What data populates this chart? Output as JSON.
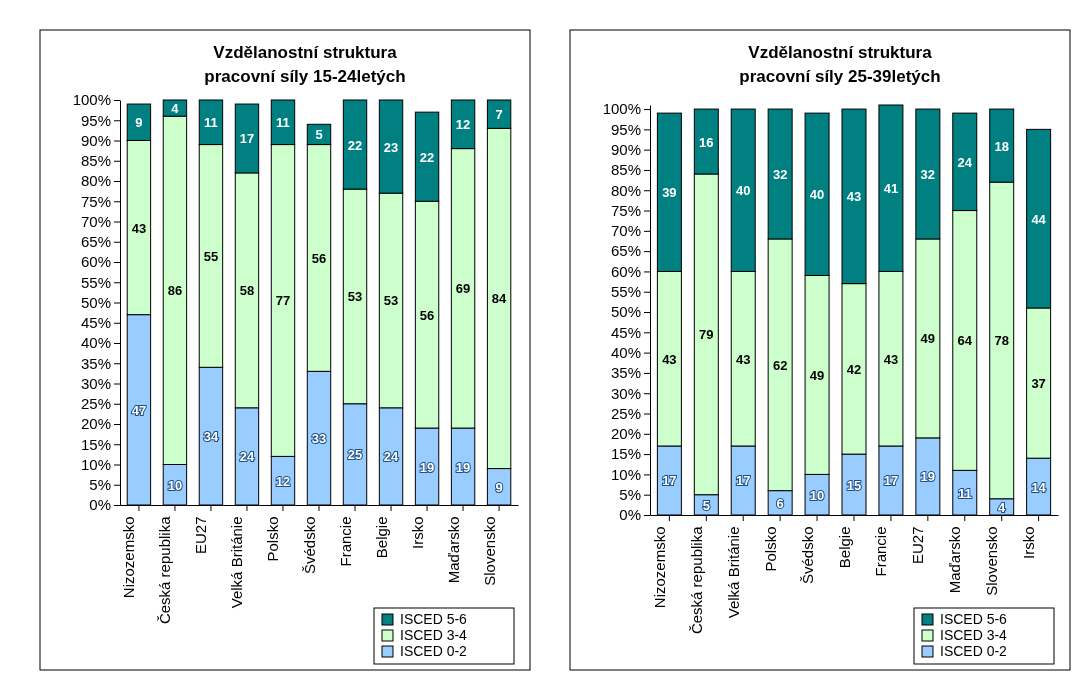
{
  "chart_data": [
    {
      "type": "bar",
      "title": "Vzdělanostní struktura\npracovní síly 15-24letých",
      "stacked": true,
      "data_labels": true,
      "legend": "bottom right",
      "grid": false,
      "categories": [
        "Nizozemsko",
        "Česká republika",
        "EU27",
        "Velká Británie",
        "Polsko",
        "Švédsko",
        "Francie",
        "Belgie",
        "Irsko",
        "Maďarsko",
        "Slovensko"
      ],
      "ylim": [
        0,
        100
      ],
      "yticks": [
        {
          "value": 0,
          "label": "0%"
        },
        {
          "value": 5,
          "label": "5%"
        },
        {
          "value": 10,
          "label": "10%"
        },
        {
          "value": 15,
          "label": "15%"
        },
        {
          "value": 20,
          "label": "20%"
        },
        {
          "value": 25,
          "label": "25%"
        },
        {
          "value": 30,
          "label": "30%"
        },
        {
          "value": 35,
          "label": "35%"
        },
        {
          "value": 40,
          "label": "40%"
        },
        {
          "value": 45,
          "label": "45%"
        },
        {
          "value": 50,
          "label": "50%"
        },
        {
          "value": 55,
          "label": "55%"
        },
        {
          "value": 60,
          "label": "60%"
        },
        {
          "value": 65,
          "label": "65%"
        },
        {
          "value": 70,
          "label": "70%"
        },
        {
          "value": 75,
          "label": "75%"
        },
        {
          "value": 80,
          "label": "80%"
        },
        {
          "value": 85,
          "label": "85%"
        },
        {
          "value": 90,
          "label": "90%"
        },
        {
          "value": 95,
          "label": "95%"
        },
        {
          "value": 100,
          "label": "100%"
        }
      ],
      "series": [
        {
          "name": "ISCED 0-2",
          "color": "#99ccff",
          "values": [
            47,
            10,
            34,
            24,
            12,
            33,
            25,
            24,
            19,
            19,
            9
          ]
        },
        {
          "name": "ISCED 3-4",
          "color": "#ccffcc",
          "values": [
            43,
            86,
            55,
            58,
            77,
            56,
            53,
            53,
            56,
            69,
            84
          ]
        },
        {
          "name": "ISCED 5-6",
          "color": "#008080",
          "values": [
            9,
            4,
            11,
            17,
            11,
            5,
            22,
            23,
            22,
            12,
            7
          ]
        }
      ]
    },
    {
      "type": "bar",
      "title": "Vzdělanostní struktura\npracovní síly 25-39letých",
      "stacked": true,
      "data_labels": true,
      "legend": "bottom right",
      "grid": false,
      "categories": [
        "Nizozemsko",
        "Česká republika",
        "Velká Británie",
        "Polsko",
        "Švédsko",
        "Belgie",
        "Francie",
        "EU27",
        "Maďarsko",
        "Slovensko",
        "Irsko"
      ],
      "ylim": [
        0,
        101
      ],
      "yticks": [
        {
          "value": 0,
          "label": "0%"
        },
        {
          "value": 5,
          "label": "5%"
        },
        {
          "value": 10,
          "label": "10%"
        },
        {
          "value": 15,
          "label": "15%"
        },
        {
          "value": 20,
          "label": "20%"
        },
        {
          "value": 25,
          "label": "25%"
        },
        {
          "value": 30,
          "label": "30%"
        },
        {
          "value": 35,
          "label": "35%"
        },
        {
          "value": 40,
          "label": "40%"
        },
        {
          "value": 45,
          "label": "45%"
        },
        {
          "value": 50,
          "label": "50%"
        },
        {
          "value": 55,
          "label": "55%"
        },
        {
          "value": 60,
          "label": "60%"
        },
        {
          "value": 65,
          "label": "65%"
        },
        {
          "value": 70,
          "label": "70%"
        },
        {
          "value": 75,
          "label": "75%"
        },
        {
          "value": 80,
          "label": "80%"
        },
        {
          "value": 85,
          "label": "85%"
        },
        {
          "value": 90,
          "label": "90%"
        },
        {
          "value": 95,
          "label": "95%"
        },
        {
          "value": 100,
          "label": "100%"
        }
      ],
      "series": [
        {
          "name": "ISCED 0-2",
          "color": "#99ccff",
          "values": [
            17,
            5,
            17,
            6,
            10,
            15,
            17,
            19,
            11,
            4,
            14
          ]
        },
        {
          "name": "ISCED 3-4",
          "color": "#ccffcc",
          "values": [
            43,
            79,
            43,
            62,
            49,
            42,
            43,
            49,
            64,
            78,
            37
          ]
        },
        {
          "name": "ISCED 5-6",
          "color": "#008080",
          "values": [
            39,
            16,
            40,
            32,
            40,
            43,
            41,
            32,
            24,
            18,
            44
          ]
        }
      ]
    }
  ]
}
